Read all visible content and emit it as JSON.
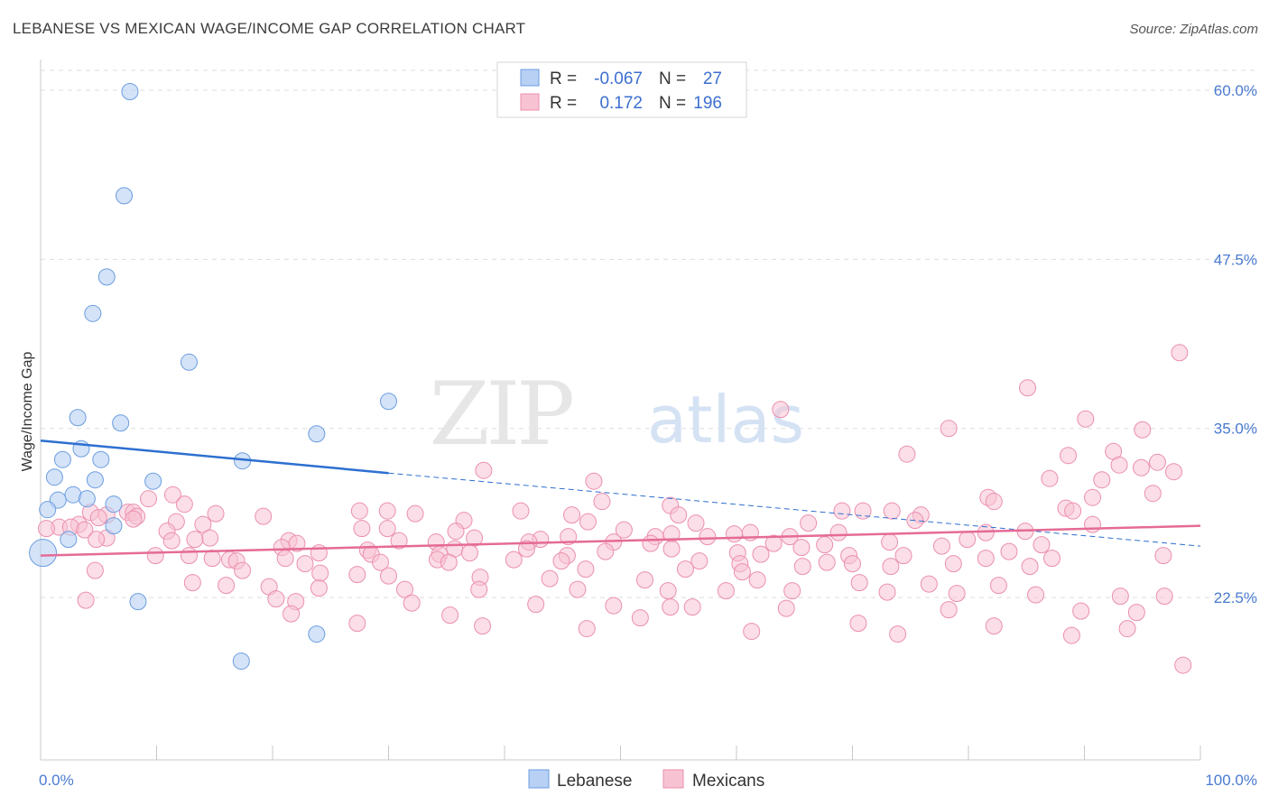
{
  "title": "LEBANESE VS MEXICAN WAGE/INCOME GAP CORRELATION CHART",
  "source": "Source: ZipAtlas.com",
  "watermark": {
    "zip": "ZIP",
    "atlas": "atlas"
  },
  "colors": {
    "lebanese_fill": "#b7d0f4",
    "lebanese_stroke": "#6b9ddf",
    "lebanese_line": "#2d6fd0",
    "mexican_fill": "#f7c3d3",
    "mexican_stroke": "#eb8fae",
    "mexican_line": "#e56b96",
    "tick_text": "#4a7bd0",
    "grid": "#dddddd"
  },
  "legend": {
    "rows": [
      {
        "r_label": "R =",
        "r_value": "-0.067",
        "n_label": "N =",
        "n_value": "27"
      },
      {
        "r_label": "R =",
        "r_value": "0.172",
        "n_label": "N =",
        "n_value": "196"
      }
    ],
    "bottom": [
      "Lebanese",
      "Mexicans"
    ]
  },
  "chart_data": {
    "type": "scatter",
    "xlabel": "",
    "ylabel": "Wage/Income Gap",
    "xlim": [
      0,
      100
    ],
    "ylim": [
      10.5,
      62
    ],
    "x_tick_labels": [
      "0.0%",
      "100.0%"
    ],
    "y_ticks": [
      22.5,
      35.0,
      47.5,
      60.0
    ],
    "y_tick_labels": [
      "22.5%",
      "35.0%",
      "47.5%",
      "60.0%"
    ],
    "grid": "horizontal dashed",
    "series": [
      {
        "name": "Lebanese",
        "trend": {
          "x0": 0,
          "y0": 34.1,
          "x1": 30,
          "y1": 31.7,
          "dashed_to_x": 100,
          "dashed_to_y": 26.3
        },
        "points": [
          [
            7.7,
            59.9
          ],
          [
            7.2,
            52.2
          ],
          [
            5.7,
            46.2
          ],
          [
            4.5,
            43.5
          ],
          [
            12.8,
            39.9
          ],
          [
            30.0,
            37.0
          ],
          [
            3.2,
            35.8
          ],
          [
            6.9,
            35.4
          ],
          [
            23.8,
            34.6
          ],
          [
            3.5,
            33.5
          ],
          [
            1.9,
            32.7
          ],
          [
            5.2,
            32.7
          ],
          [
            17.4,
            32.6
          ],
          [
            1.2,
            31.4
          ],
          [
            4.7,
            31.2
          ],
          [
            9.7,
            31.1
          ],
          [
            2.8,
            30.1
          ],
          [
            1.5,
            29.7
          ],
          [
            4.0,
            29.8
          ],
          [
            6.3,
            29.4
          ],
          [
            0.6,
            29.0
          ],
          [
            6.3,
            27.8
          ],
          [
            2.4,
            26.8
          ],
          [
            0.2,
            25.8
          ],
          [
            8.4,
            22.2
          ],
          [
            23.8,
            19.8
          ],
          [
            17.3,
            17.8
          ]
        ]
      },
      {
        "name": "Mexicans",
        "trend": {
          "x0": 0,
          "y0": 25.6,
          "x1": 100,
          "y1": 27.8
        },
        "points": [
          [
            98.2,
            40.6
          ],
          [
            85.1,
            38.0
          ],
          [
            63.8,
            36.4
          ],
          [
            90.1,
            35.7
          ],
          [
            78.3,
            35.0
          ],
          [
            95.0,
            34.9
          ],
          [
            92.5,
            33.3
          ],
          [
            74.7,
            33.1
          ],
          [
            88.6,
            33.0
          ],
          [
            96.3,
            32.5
          ],
          [
            93.0,
            32.3
          ],
          [
            94.9,
            32.1
          ],
          [
            38.2,
            31.9
          ],
          [
            97.7,
            31.8
          ],
          [
            87.0,
            31.3
          ],
          [
            91.5,
            31.2
          ],
          [
            47.7,
            31.1
          ],
          [
            95.9,
            30.2
          ],
          [
            11.4,
            30.1
          ],
          [
            90.7,
            29.9
          ],
          [
            9.3,
            29.8
          ],
          [
            81.7,
            29.9
          ],
          [
            82.2,
            29.6
          ],
          [
            48.4,
            29.6
          ],
          [
            12.4,
            29.4
          ],
          [
            54.3,
            29.3
          ],
          [
            88.4,
            29.1
          ],
          [
            89.0,
            28.9
          ],
          [
            4.3,
            28.8
          ],
          [
            27.5,
            28.9
          ],
          [
            29.9,
            28.9
          ],
          [
            41.4,
            28.9
          ],
          [
            70.9,
            28.9
          ],
          [
            73.4,
            28.9
          ],
          [
            69.1,
            28.9
          ],
          [
            55.0,
            28.6
          ],
          [
            7.5,
            28.8
          ],
          [
            15.1,
            28.7
          ],
          [
            8.0,
            28.8
          ],
          [
            32.3,
            28.7
          ],
          [
            75.9,
            28.6
          ],
          [
            45.8,
            28.6
          ],
          [
            5.7,
            28.6
          ],
          [
            5.0,
            28.4
          ],
          [
            8.3,
            28.5
          ],
          [
            19.2,
            28.5
          ],
          [
            8.0,
            28.3
          ],
          [
            11.7,
            28.1
          ],
          [
            36.5,
            28.2
          ],
          [
            75.4,
            28.2
          ],
          [
            66.2,
            28.0
          ],
          [
            3.3,
            27.9
          ],
          [
            47.2,
            28.1
          ],
          [
            14.0,
            27.9
          ],
          [
            56.5,
            28.0
          ],
          [
            90.7,
            27.9
          ],
          [
            1.6,
            27.7
          ],
          [
            2.6,
            27.7
          ],
          [
            0.5,
            27.6
          ],
          [
            27.7,
            27.6
          ],
          [
            3.8,
            27.5
          ],
          [
            50.3,
            27.5
          ],
          [
            29.9,
            27.6
          ],
          [
            84.9,
            27.4
          ],
          [
            10.9,
            27.4
          ],
          [
            35.8,
            27.4
          ],
          [
            61.2,
            27.3
          ],
          [
            68.8,
            27.3
          ],
          [
            81.5,
            27.3
          ],
          [
            54.4,
            27.2
          ],
          [
            59.8,
            27.2
          ],
          [
            45.5,
            27.0
          ],
          [
            53.0,
            27.0
          ],
          [
            57.5,
            27.0
          ],
          [
            43.1,
            26.8
          ],
          [
            14.6,
            26.9
          ],
          [
            37.4,
            26.9
          ],
          [
            64.6,
            27.0
          ],
          [
            79.9,
            26.8
          ],
          [
            5.7,
            26.9
          ],
          [
            13.3,
            26.8
          ],
          [
            4.8,
            26.8
          ],
          [
            11.3,
            26.7
          ],
          [
            21.4,
            26.7
          ],
          [
            30.9,
            26.7
          ],
          [
            34.1,
            26.6
          ],
          [
            42.1,
            26.6
          ],
          [
            22.1,
            26.5
          ],
          [
            49.4,
            26.6
          ],
          [
            52.6,
            26.5
          ],
          [
            63.2,
            26.5
          ],
          [
            67.6,
            26.4
          ],
          [
            73.2,
            26.6
          ],
          [
            77.7,
            26.3
          ],
          [
            86.3,
            26.4
          ],
          [
            20.8,
            26.2
          ],
          [
            28.2,
            26.0
          ],
          [
            35.7,
            26.1
          ],
          [
            41.9,
            26.1
          ],
          [
            54.4,
            26.1
          ],
          [
            65.6,
            26.2
          ],
          [
            48.7,
            25.9
          ],
          [
            83.5,
            25.9
          ],
          [
            60.1,
            25.8
          ],
          [
            24.0,
            25.8
          ],
          [
            9.9,
            25.6
          ],
          [
            12.8,
            25.6
          ],
          [
            28.5,
            25.7
          ],
          [
            34.4,
            25.7
          ],
          [
            37.0,
            25.8
          ],
          [
            45.4,
            25.6
          ],
          [
            62.1,
            25.7
          ],
          [
            69.7,
            25.6
          ],
          [
            74.4,
            25.6
          ],
          [
            81.5,
            25.4
          ],
          [
            96.8,
            25.6
          ],
          [
            14.8,
            25.4
          ],
          [
            21.1,
            25.4
          ],
          [
            34.2,
            25.3
          ],
          [
            40.8,
            25.3
          ],
          [
            44.9,
            25.2
          ],
          [
            56.8,
            25.2
          ],
          [
            67.8,
            25.1
          ],
          [
            70.0,
            25.0
          ],
          [
            78.7,
            25.0
          ],
          [
            87.2,
            25.4
          ],
          [
            16.3,
            25.3
          ],
          [
            16.9,
            25.2
          ],
          [
            22.8,
            25.0
          ],
          [
            29.3,
            25.1
          ],
          [
            35.2,
            25.1
          ],
          [
            60.3,
            25.0
          ],
          [
            65.7,
            24.8
          ],
          [
            73.3,
            24.8
          ],
          [
            85.3,
            24.8
          ],
          [
            47.0,
            24.6
          ],
          [
            55.6,
            24.6
          ],
          [
            60.5,
            24.4
          ],
          [
            4.7,
            24.5
          ],
          [
            17.4,
            24.5
          ],
          [
            24.1,
            24.3
          ],
          [
            27.3,
            24.2
          ],
          [
            30.0,
            24.1
          ],
          [
            37.9,
            24.0
          ],
          [
            43.9,
            23.9
          ],
          [
            52.1,
            23.8
          ],
          [
            61.8,
            23.8
          ],
          [
            70.6,
            23.6
          ],
          [
            76.6,
            23.5
          ],
          [
            82.6,
            23.4
          ],
          [
            13.1,
            23.6
          ],
          [
            16.0,
            23.4
          ],
          [
            19.7,
            23.3
          ],
          [
            24.0,
            23.2
          ],
          [
            31.4,
            23.1
          ],
          [
            37.8,
            23.1
          ],
          [
            46.3,
            23.1
          ],
          [
            54.1,
            23.0
          ],
          [
            59.1,
            23.0
          ],
          [
            64.8,
            23.0
          ],
          [
            73.0,
            22.9
          ],
          [
            79.0,
            22.8
          ],
          [
            85.8,
            22.7
          ],
          [
            93.1,
            22.6
          ],
          [
            96.9,
            22.6
          ],
          [
            3.9,
            22.3
          ],
          [
            20.3,
            22.4
          ],
          [
            22.0,
            22.2
          ],
          [
            32.0,
            22.1
          ],
          [
            42.7,
            22.0
          ],
          [
            49.4,
            21.9
          ],
          [
            54.3,
            21.8
          ],
          [
            56.2,
            21.8
          ],
          [
            64.3,
            21.7
          ],
          [
            78.3,
            21.6
          ],
          [
            89.7,
            21.5
          ],
          [
            94.5,
            21.4
          ],
          [
            21.6,
            21.3
          ],
          [
            35.3,
            21.2
          ],
          [
            51.7,
            21.0
          ],
          [
            70.5,
            20.6
          ],
          [
            82.2,
            20.4
          ],
          [
            93.7,
            20.2
          ],
          [
            27.3,
            20.6
          ],
          [
            38.1,
            20.4
          ],
          [
            47.1,
            20.2
          ],
          [
            61.3,
            20.0
          ],
          [
            73.9,
            19.8
          ],
          [
            88.9,
            19.7
          ],
          [
            98.5,
            17.5
          ]
        ]
      }
    ]
  }
}
